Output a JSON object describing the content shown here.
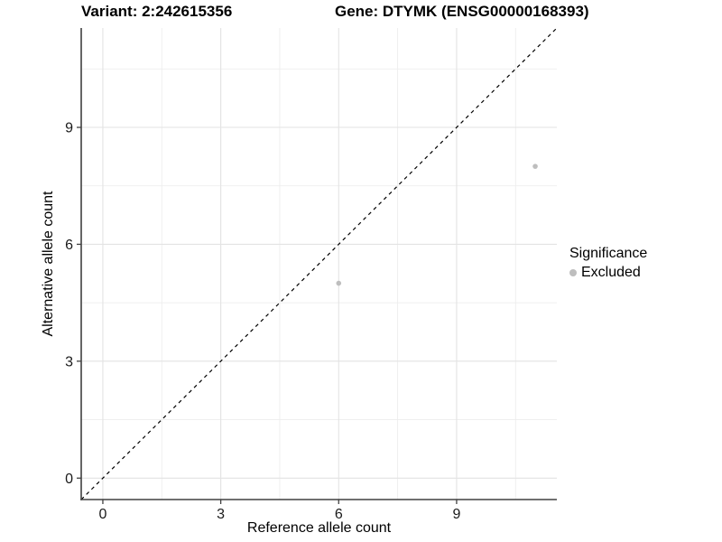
{
  "chart_data": {
    "type": "scatter",
    "title_left": "Variant: 2:242615356",
    "title_right": "Gene: DTYMK (ENSG00000168393)",
    "xlabel": "Reference allele count",
    "ylabel": "Alternative allele count",
    "xlim": [
      -0.55,
      11.55
    ],
    "ylim": [
      -0.55,
      11.55
    ],
    "x_major_ticks": [
      0,
      3,
      6,
      9
    ],
    "y_major_ticks": [
      0,
      3,
      6,
      9
    ],
    "x_minor_ticks": [
      1.5,
      4.5,
      7.5,
      10.5
    ],
    "y_minor_ticks": [
      1.5,
      4.5,
      7.5,
      10.5
    ],
    "grid": "major+minor on white panel, left and bottom axis lines only",
    "points": [
      {
        "x": 6,
        "y": 5,
        "series": "Excluded"
      },
      {
        "x": 11,
        "y": 8,
        "series": "Excluded"
      }
    ],
    "identity_line": {
      "style": "dashed",
      "slope": 1,
      "intercept": 0
    },
    "legend": {
      "title": "Significance",
      "position": "right",
      "items": [
        {
          "label": "Excluded",
          "color": "#bebebe"
        }
      ]
    },
    "colors": {
      "point": "#bebebe",
      "grid_major": "#e3e3e3",
      "grid_minor": "#ededed",
      "axis_line": "#404040",
      "tick_text": "#1a1a1a",
      "dashed_line": "#000000"
    }
  }
}
